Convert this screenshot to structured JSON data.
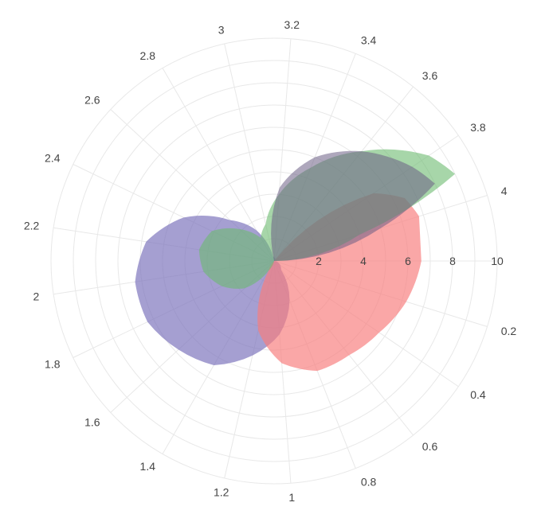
{
  "chart_data": {
    "type": "polar-area",
    "title": "",
    "angular_axis": {
      "range": [
        0,
        4.2
      ],
      "tick_labels": [
        "0.2",
        "0.4",
        "0.6",
        "0.8",
        "1",
        "1.2",
        "1.4",
        "1.6",
        "1.8",
        "2",
        "2.2",
        "2.4",
        "2.6",
        "2.8",
        "3",
        "3.2",
        "3.4",
        "3.6",
        "3.8",
        "4"
      ],
      "direction": "clockwise",
      "zero_position": "east"
    },
    "radial_axis": {
      "range": [
        0,
        10
      ],
      "tick_labels": [
        "2",
        "4",
        "6",
        "8",
        "10"
      ]
    },
    "grid": true,
    "series": [
      {
        "color": "#7b72bb",
        "opacity": 0.68,
        "points": [
          {
            "theta": 0.0,
            "r": 0.0
          },
          {
            "theta": 0.6,
            "r": 0.5
          },
          {
            "theta": 1.0,
            "r": 3.3
          },
          {
            "theta": 1.4,
            "r": 5.4
          },
          {
            "theta": 1.8,
            "r": 6.3
          },
          {
            "theta": 2.0,
            "r": 6.3
          },
          {
            "theta": 2.2,
            "r": 5.8
          },
          {
            "theta": 2.4,
            "r": 4.5
          },
          {
            "theta": 2.6,
            "r": 2.7
          },
          {
            "theta": 2.8,
            "r": 1.6
          },
          {
            "theta": 3.0,
            "r": 0.2
          },
          {
            "theta": 4.0,
            "r": 0.0
          }
        ]
      },
      {
        "color": "#f77e7e",
        "opacity": 0.68,
        "points": [
          {
            "theta": 0.0,
            "r": 6.6
          },
          {
            "theta": 0.2,
            "r": 6.2
          },
          {
            "theta": 0.4,
            "r": 5.7
          },
          {
            "theta": 0.6,
            "r": 5.4
          },
          {
            "theta": 0.8,
            "r": 5.3
          },
          {
            "theta": 1.0,
            "r": 4.6
          },
          {
            "theta": 1.2,
            "r": 3.2
          },
          {
            "theta": 1.4,
            "r": 0.5
          },
          {
            "theta": 1.6,
            "r": 0.0
          },
          {
            "theta": 3.6,
            "r": 0.0
          },
          {
            "theta": 3.8,
            "r": 5.4
          },
          {
            "theta": 3.9,
            "r": 6.5
          },
          {
            "theta": 4.0,
            "r": 6.8
          }
        ]
      },
      {
        "color": "#6cbb6f",
        "opacity": 0.6,
        "points": [
          {
            "theta": 0.0,
            "r": 0.0
          },
          {
            "theta": 1.2,
            "r": 0.0
          },
          {
            "theta": 1.4,
            "r": 0.5
          },
          {
            "theta": 1.6,
            "r": 1.8
          },
          {
            "theta": 1.8,
            "r": 2.6
          },
          {
            "theta": 2.0,
            "r": 3.2
          },
          {
            "theta": 2.2,
            "r": 3.4
          },
          {
            "theta": 2.4,
            "r": 3.1
          },
          {
            "theta": 2.6,
            "r": 2.1
          },
          {
            "theta": 2.8,
            "r": 1.2
          },
          {
            "theta": 3.0,
            "r": 1.7
          },
          {
            "theta": 3.2,
            "r": 3.0
          },
          {
            "theta": 3.4,
            "r": 4.5
          },
          {
            "theta": 3.6,
            "r": 6.3
          },
          {
            "theta": 3.8,
            "r": 8.4
          },
          {
            "theta": 3.9,
            "r": 9.0
          },
          {
            "theta": 4.0,
            "r": 4.0
          },
          {
            "theta": 4.2,
            "r": 0.0
          }
        ]
      },
      {
        "color": "#6b5e85",
        "opacity": 0.55,
        "points": [
          {
            "theta": 0.0,
            "r": 0.0
          },
          {
            "theta": 3.0,
            "r": 0.0
          },
          {
            "theta": 3.2,
            "r": 3.3
          },
          {
            "theta": 3.4,
            "r": 5.0
          },
          {
            "theta": 3.6,
            "r": 6.3
          },
          {
            "theta": 3.8,
            "r": 7.5
          },
          {
            "theta": 3.9,
            "r": 8.0
          },
          {
            "theta": 4.0,
            "r": 5.0
          },
          {
            "theta": 4.2,
            "r": 0.0
          }
        ]
      }
    ]
  }
}
